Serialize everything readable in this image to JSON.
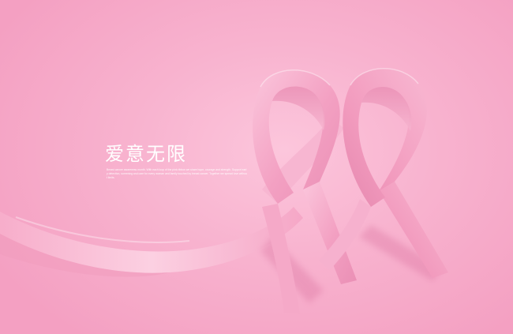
{
  "title": "爱意无限",
  "body_text": "Breast cancer awareness month. With each loop of the pink ribbon we share hope, courage and strength. Support early detection, screening and care for every woman and family touched by breast cancer. Together we spread love without limits.",
  "colors": {
    "background": "#f6a9c7",
    "ribbon_light": "#fbc3d9",
    "ribbon_mid": "#f39cbf",
    "ribbon_shadow": "#e07fa8",
    "text": "#ffffff"
  }
}
